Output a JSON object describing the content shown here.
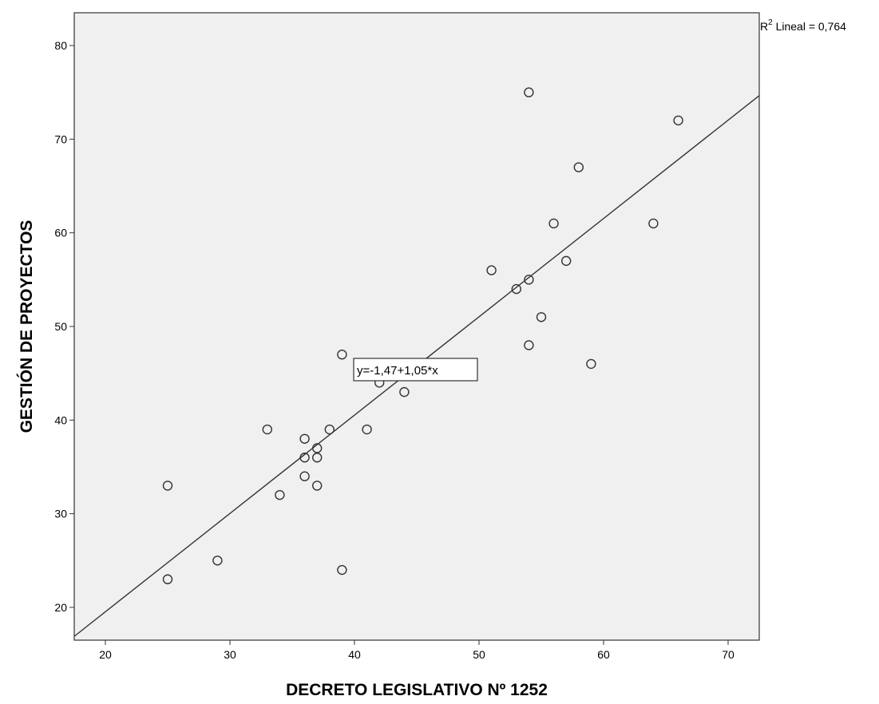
{
  "chart_data": {
    "type": "scatter",
    "title": "",
    "xlabel": "DECRETO LEGISLATIVO Nº 1252",
    "ylabel": "GESTIÓN DE PROYECTOS",
    "xlim": [
      17.5,
      72.5
    ],
    "ylim": [
      16.5,
      83.5
    ],
    "xticks": [
      20,
      30,
      40,
      50,
      60,
      70
    ],
    "yticks": [
      20,
      30,
      40,
      50,
      60,
      70,
      80
    ],
    "grid": false,
    "colors": {
      "plot_background": "#f0f0f0",
      "marker": "#333333",
      "line": "#333333"
    },
    "points": [
      {
        "x": 25,
        "y": 33
      },
      {
        "x": 25,
        "y": 23
      },
      {
        "x": 29,
        "y": 25
      },
      {
        "x": 33,
        "y": 39
      },
      {
        "x": 34,
        "y": 32
      },
      {
        "x": 36,
        "y": 38
      },
      {
        "x": 36,
        "y": 36
      },
      {
        "x": 36,
        "y": 34
      },
      {
        "x": 37,
        "y": 37
      },
      {
        "x": 37,
        "y": 36
      },
      {
        "x": 37,
        "y": 33
      },
      {
        "x": 38,
        "y": 39
      },
      {
        "x": 39,
        "y": 47
      },
      {
        "x": 39,
        "y": 24
      },
      {
        "x": 41,
        "y": 39
      },
      {
        "x": 42,
        "y": 44
      },
      {
        "x": 44,
        "y": 43
      },
      {
        "x": 51,
        "y": 56
      },
      {
        "x": 53,
        "y": 54
      },
      {
        "x": 54,
        "y": 75
      },
      {
        "x": 54,
        "y": 55
      },
      {
        "x": 54,
        "y": 48
      },
      {
        "x": 55,
        "y": 51
      },
      {
        "x": 56,
        "y": 61
      },
      {
        "x": 57,
        "y": 57
      },
      {
        "x": 58,
        "y": 67
      },
      {
        "x": 59,
        "y": 46
      },
      {
        "x": 64,
        "y": 61
      },
      {
        "x": 66,
        "y": 72
      }
    ],
    "fit_line": {
      "intercept": -1.47,
      "slope": 1.05
    },
    "annotations": {
      "equation": "y=-1,47+1,05*x",
      "r2_prefix": "R",
      "r2_superscript": "2",
      "r2_suffix": " Lineal = 0,764"
    }
  }
}
